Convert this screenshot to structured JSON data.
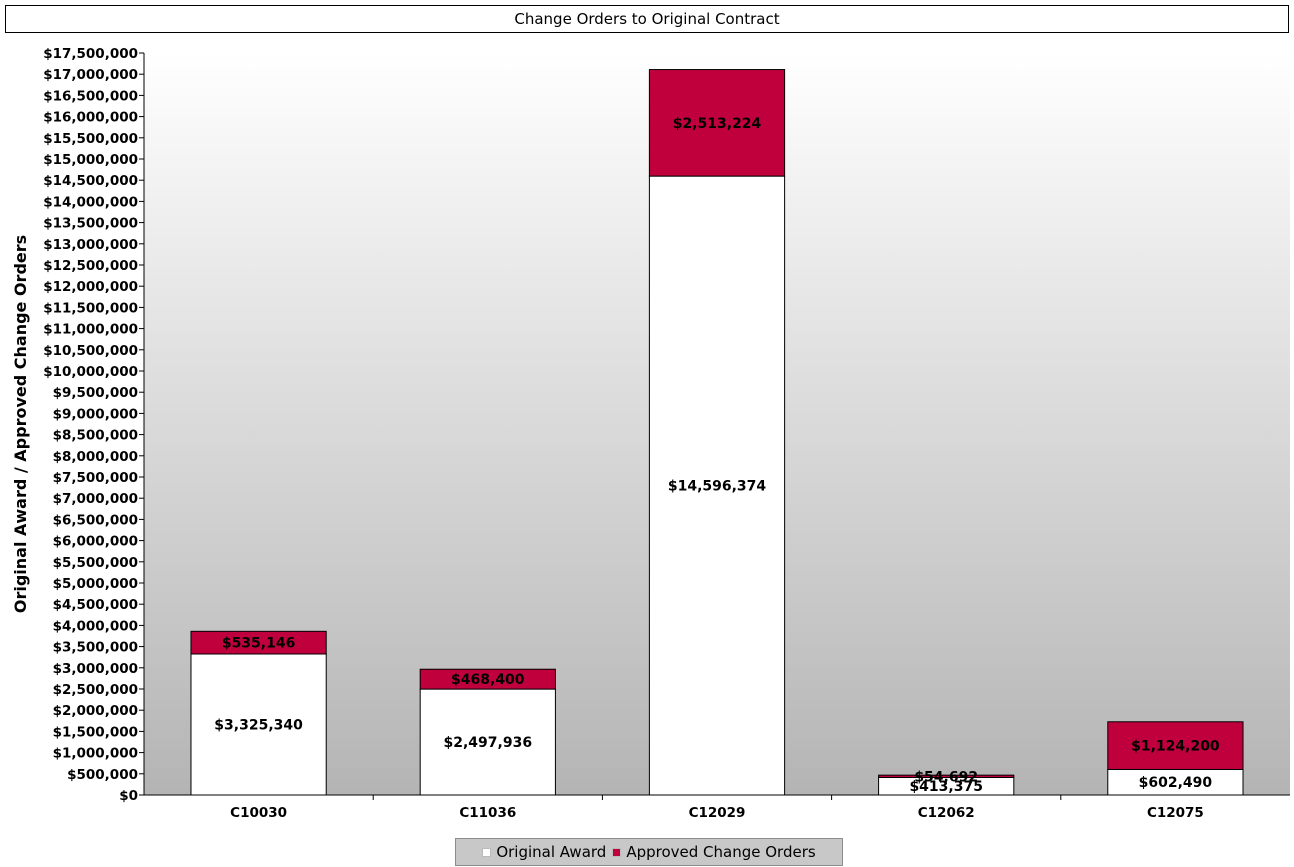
{
  "chart_data": {
    "type": "bar",
    "stacked": true,
    "title": "Change Orders to Original Contract",
    "ylabel": "Original Award / Approved Change Orders",
    "xlabel": "",
    "ylim": [
      0,
      17500000
    ],
    "ytick_step": 500000,
    "categories": [
      "C10030",
      "C11036",
      "C12029",
      "C12062",
      "C12075"
    ],
    "series": [
      {
        "name": "Original Award",
        "color": "#ffffff",
        "values": [
          3325340,
          2497936,
          14596374,
          413375,
          602490
        ],
        "labels": [
          "$3,325,340",
          "$2,497,936",
          "$14,596,374",
          "$413,375",
          "$602,490"
        ]
      },
      {
        "name": "Approved Change Orders",
        "color": "#c0003c",
        "values": [
          535146,
          468400,
          2513224,
          54692,
          1124200
        ],
        "labels": [
          "$535,146",
          "$468,400",
          "$2,513,224",
          "$54,692",
          "$1,124,200"
        ]
      }
    ],
    "yticks": [
      "$0",
      "$500,000",
      "$1,000,000",
      "$1,500,000",
      "$2,000,000",
      "$2,500,000",
      "$3,000,000",
      "$3,500,000",
      "$4,000,000",
      "$4,500,000",
      "$5,000,000",
      "$5,500,000",
      "$6,000,000",
      "$6,500,000",
      "$7,000,000",
      "$7,500,000",
      "$8,000,000",
      "$8,500,000",
      "$9,000,000",
      "$9,500,000",
      "$10,000,000",
      "$10,500,000",
      "$11,000,000",
      "$11,500,000",
      "$12,000,000",
      "$12,500,000",
      "$13,000,000",
      "$13,500,000",
      "$14,000,000",
      "$14,500,000",
      "$15,000,000",
      "$15,500,000",
      "$16,000,000",
      "$16,500,000",
      "$17,000,000",
      "$17,500,000"
    ],
    "legend_position": "bottom",
    "grid": false,
    "background": "gradient white to gray"
  }
}
